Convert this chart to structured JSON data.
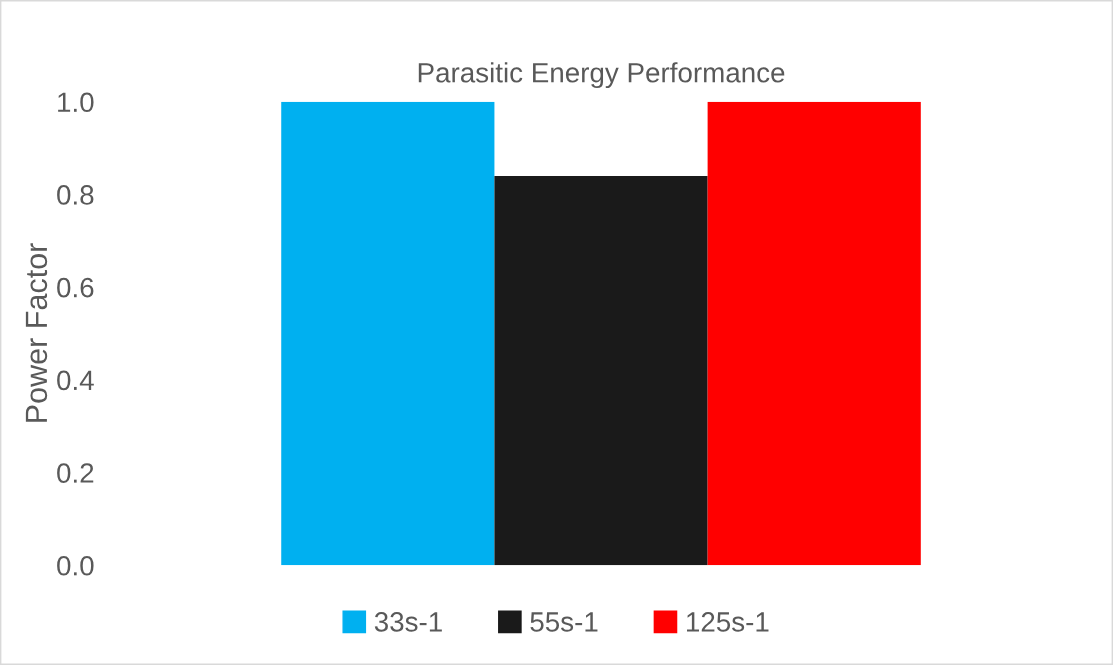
{
  "chart_data": {
    "type": "bar",
    "title": "Parasitic Energy Performance",
    "ylabel": "Power Factor",
    "categories": [
      null
    ],
    "series": [
      {
        "name": "33s-1",
        "color": "#00b0f0",
        "values": [
          1.0
        ]
      },
      {
        "name": "55s-1",
        "color": "#1a1a1a",
        "values": [
          0.84
        ]
      },
      {
        "name": "125s-1",
        "color": "#ff0000",
        "values": [
          1.0
        ]
      }
    ],
    "ylim": [
      0,
      1.0
    ],
    "yticks": [
      {
        "value": 0,
        "label": "0.0"
      },
      {
        "value": 0.2,
        "label": "0.2"
      },
      {
        "value": 0.4,
        "label": "0.4"
      },
      {
        "value": 0.6,
        "label": "0.6"
      },
      {
        "value": 0.8,
        "label": "0.8"
      },
      {
        "value": 1.0,
        "label": "1.0"
      }
    ],
    "grid": false,
    "legend": "bottom"
  }
}
